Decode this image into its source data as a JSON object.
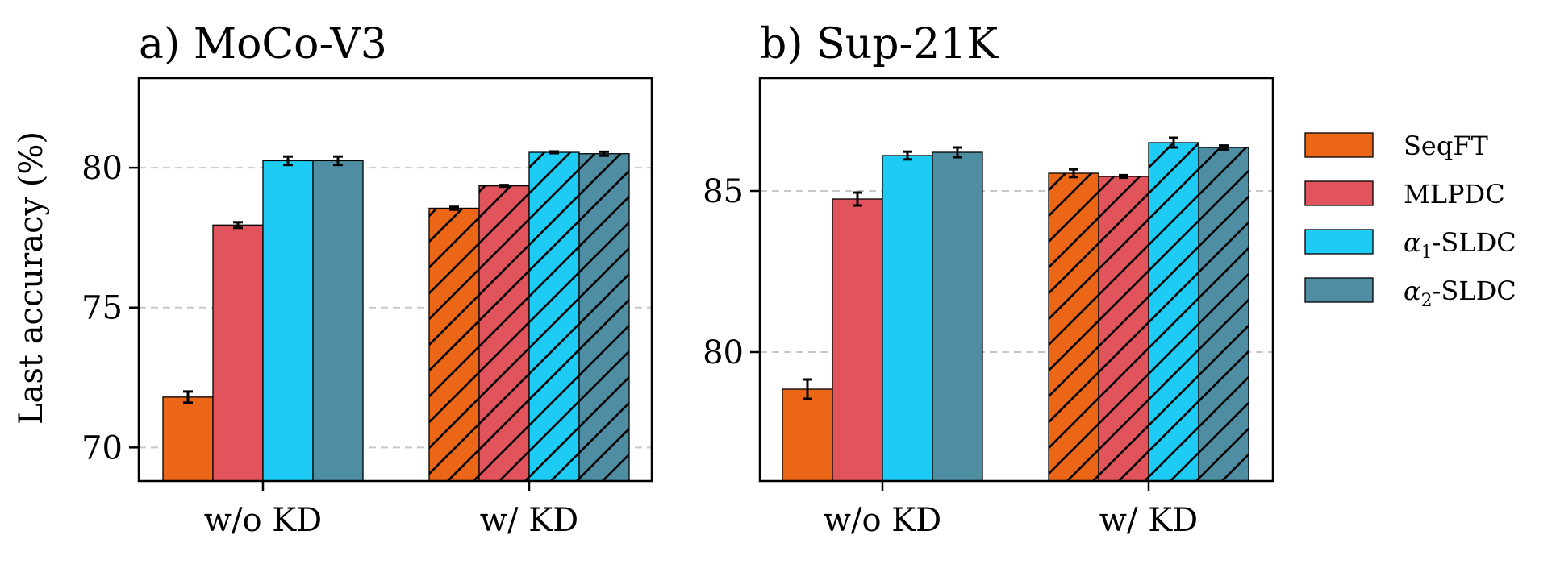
{
  "figure": {
    "ylabel": "Last accuracy (%)"
  },
  "legend": [
    {
      "name": "SeqFT",
      "color": "#EB6617"
    },
    {
      "name": "MLPDC",
      "color": "#E1545C"
    },
    {
      "name": "α1-SLDC",
      "greek": "α",
      "sub": "1",
      "suffix": "-SLDC",
      "color": "#1ECBF4"
    },
    {
      "name": "α2-SLDC",
      "greek": "α",
      "sub": "2",
      "suffix": "-SLDC",
      "color": "#4E8DA2"
    }
  ],
  "chart_data": [
    {
      "type": "bar",
      "title": "a) MoCo-V3",
      "categories": [
        "w/o KD",
        "w/ KD"
      ],
      "ylim": [
        68.8,
        83.2
      ],
      "yticks": [
        70,
        75,
        80
      ],
      "grid": true,
      "hatched_category": "w/ KD",
      "series": [
        {
          "name": "SeqFT",
          "values": [
            71.8,
            78.55
          ],
          "errors": [
            0.2,
            0.05
          ]
        },
        {
          "name": "MLPDC",
          "values": [
            77.95,
            79.35
          ],
          "errors": [
            0.1,
            0.03
          ]
        },
        {
          "name": "α1-SLDC",
          "values": [
            80.25,
            80.55
          ],
          "errors": [
            0.15,
            0.03
          ]
        },
        {
          "name": "α2-SLDC",
          "values": [
            80.25,
            80.5
          ],
          "errors": [
            0.15,
            0.07
          ]
        }
      ]
    },
    {
      "type": "bar",
      "title": "b) Sup-21K",
      "categories": [
        "w/o KD",
        "w/ KD"
      ],
      "ylim": [
        76,
        88.5
      ],
      "yticks": [
        80,
        85
      ],
      "grid": true,
      "hatched_category": "w/ KD",
      "series": [
        {
          "name": "SeqFT",
          "values": [
            78.85,
            85.55
          ],
          "errors": [
            0.3,
            0.12
          ]
        },
        {
          "name": "MLPDC",
          "values": [
            84.75,
            85.45
          ],
          "errors": [
            0.2,
            0.04
          ]
        },
        {
          "name": "α1-SLDC",
          "values": [
            86.1,
            86.5
          ],
          "errors": [
            0.12,
            0.15
          ]
        },
        {
          "name": "α2-SLDC",
          "values": [
            86.2,
            86.35
          ],
          "errors": [
            0.15,
            0.06
          ]
        }
      ]
    }
  ]
}
